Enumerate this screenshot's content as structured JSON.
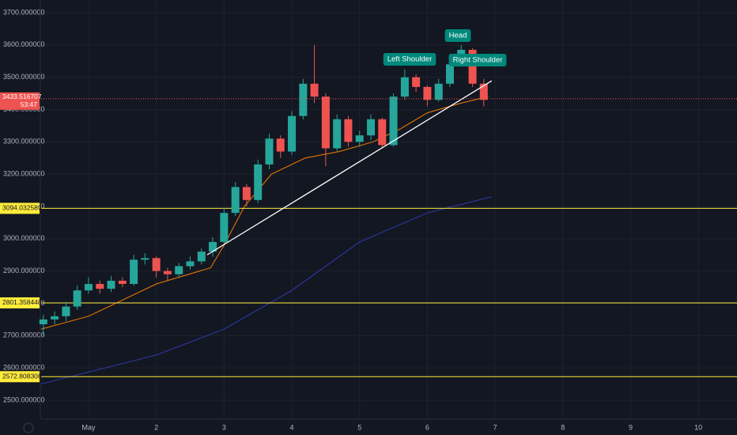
{
  "chart_data": {
    "type": "candlestick",
    "x": [
      0.333,
      0.5,
      0.667,
      0.833,
      1.0,
      1.167,
      1.333,
      1.5,
      1.667,
      1.833,
      2.0,
      2.167,
      2.333,
      2.5,
      2.667,
      2.833,
      3.0,
      3.167,
      3.333,
      3.5,
      3.667,
      3.833,
      4.0,
      4.167,
      4.333,
      4.5,
      4.667,
      4.833,
      5.0,
      5.167,
      5.333,
      5.5,
      5.667,
      5.833,
      6.0,
      6.167,
      6.333,
      6.5,
      6.667,
      6.833
    ],
    "open": [
      2735,
      2750,
      2760,
      2790,
      2840,
      2860,
      2845,
      2870,
      2860,
      2935,
      2940,
      2900,
      2890,
      2915,
      2930,
      2960,
      2990,
      3080,
      3160,
      3120,
      3230,
      3310,
      3270,
      3380,
      3480,
      3440,
      3280,
      3370,
      3300,
      3320,
      3370,
      3290,
      3440,
      3500,
      3470,
      3430,
      3480,
      3540,
      3585,
      3480
    ],
    "high": [
      2765,
      2775,
      2805,
      2855,
      2880,
      2870,
      2885,
      2880,
      2950,
      2955,
      2945,
      2910,
      2925,
      2945,
      2970,
      3005,
      3095,
      3175,
      3170,
      3245,
      3325,
      3320,
      3395,
      3495,
      3600,
      3450,
      3385,
      3380,
      3335,
      3385,
      3375,
      3450,
      3525,
      3510,
      3475,
      3495,
      3555,
      3600,
      3590,
      3495
    ],
    "low": [
      2700,
      2735,
      2745,
      2780,
      2830,
      2830,
      2835,
      2850,
      2855,
      2920,
      2880,
      2870,
      2880,
      2905,
      2920,
      2945,
      2980,
      3070,
      3100,
      3110,
      3215,
      3250,
      3260,
      3370,
      3420,
      3225,
      3270,
      3285,
      3285,
      3305,
      3280,
      3285,
      3430,
      3455,
      3410,
      3425,
      3470,
      3535,
      3470,
      3410
    ],
    "close": [
      2750,
      2760,
      2790,
      2840,
      2860,
      2845,
      2870,
      2860,
      2935,
      2940,
      2900,
      2890,
      2915,
      2930,
      2960,
      2990,
      3080,
      3160,
      3120,
      3230,
      3310,
      3270,
      3380,
      3480,
      3440,
      3280,
      3370,
      3300,
      3320,
      3370,
      3290,
      3440,
      3500,
      3470,
      3430,
      3480,
      3540,
      3585,
      3480,
      3430
    ],
    "up_color": "#26a69a",
    "down_color": "#ef5350",
    "moving_averages": [
      {
        "color": "#f57c00",
        "x": [
          0.3,
          1.0,
          2.0,
          2.8,
          3.0,
          3.3,
          3.7,
          4.2,
          4.7,
          5.2,
          5.6,
          6.0,
          6.5,
          6.9
        ],
        "values": [
          2720,
          2760,
          2860,
          2910,
          2980,
          3100,
          3200,
          3250,
          3270,
          3300,
          3340,
          3390,
          3420,
          3440
        ]
      },
      {
        "color": "#2e3bb0",
        "x": [
          0.3,
          2.0,
          3.0,
          4.0,
          5.0,
          6.0,
          6.95
        ],
        "values": [
          2550,
          2640,
          2720,
          2840,
          2990,
          3080,
          3130
        ]
      }
    ],
    "trendline": {
      "color": "#ffffff",
      "x": [
        2.75,
        6.95
      ],
      "values": [
        2950,
        3489
      ]
    },
    "levels": [
      {
        "value": 3094.032589,
        "color": "#ffeb3b"
      },
      {
        "value": 2801.358448,
        "color": "#ffeb3b"
      },
      {
        "value": 2572.808308,
        "color": "#ffeb3b"
      }
    ],
    "last_price": 3433.516707,
    "countdown": "53:47",
    "annotations": [
      "Head",
      "Left Shoulder",
      "Right Shoulder"
    ],
    "xlim": [
      0.3,
      10.57
    ],
    "xticks": [
      {
        "value": 1,
        "label": "May"
      },
      2,
      3,
      4,
      5,
      6,
      7,
      8,
      9,
      10
    ],
    "ylim": [
      2441.2,
      3739.2
    ],
    "yticks": [
      {
        "value": 2500,
        "label": "2500.000000"
      },
      {
        "value": 2600,
        "label": "2600.000000"
      },
      {
        "value": 2700,
        "label": "2700.000000"
      },
      {
        "value": 2800,
        "label": "2800.000000"
      },
      {
        "value": 2900,
        "label": "2900.000000"
      },
      {
        "value": 3000,
        "label": "3000.000000"
      },
      {
        "value": 3100,
        "label": "3100.000000"
      },
      {
        "value": 3200,
        "label": "3200.000000"
      },
      {
        "value": 3300,
        "label": "3300.000000"
      },
      {
        "value": 3400,
        "label": "3400.000000"
      },
      {
        "value": 3500,
        "label": "3500.000000"
      },
      {
        "value": 3600,
        "label": "3600.000000"
      },
      {
        "value": 3700,
        "label": "3700.000000"
      }
    ],
    "grid": true
  }
}
